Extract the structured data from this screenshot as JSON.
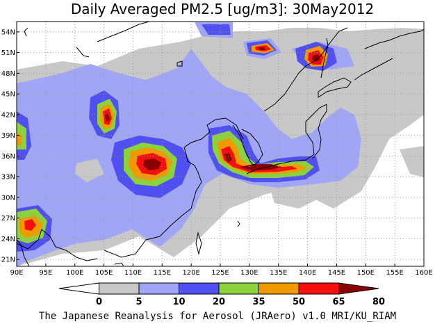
{
  "title": "Daily Averaged PM2.5 [ug/m3]: 30May2012",
  "credit": "The Japanese Reanalysis for Aerosol (JRAero) v1.0 MRI/KU_RIAM",
  "map": {
    "lon_range": [
      90,
      160
    ],
    "lat_range": [
      20,
      55.5
    ],
    "x_ticks": [
      "90E",
      "95E",
      "100E",
      "105E",
      "110E",
      "115E",
      "120E",
      "125E",
      "130E",
      "135E",
      "140E",
      "145E",
      "150E",
      "155E",
      "160E"
    ],
    "y_ticks": [
      "21N",
      "24N",
      "27N",
      "30N",
      "33N",
      "36N",
      "39N",
      "42N",
      "45N",
      "48N",
      "51N",
      "54N"
    ],
    "grid": "dotted"
  },
  "colorbar": {
    "labels": [
      "0",
      "5",
      "10",
      "20",
      "35",
      "50",
      "65",
      "80"
    ],
    "colors": [
      "#ffffff",
      "#c8c8c8",
      "#a0a6f5",
      "#5050f0",
      "#8cd23c",
      "#f09a00",
      "#f51010",
      "#8a0000"
    ]
  }
}
